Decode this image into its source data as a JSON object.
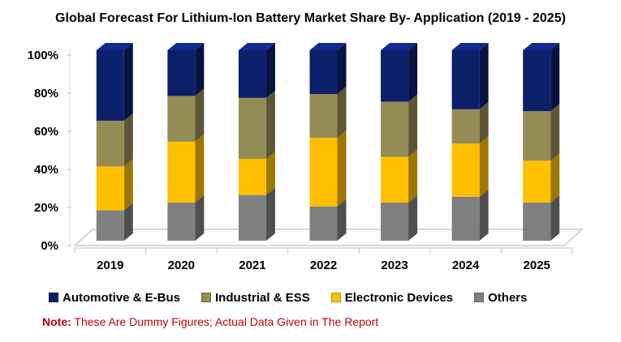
{
  "chart_data": {
    "type": "bar",
    "stacked": "percent",
    "title": "Global Forecast For Lithium-Ion Battery Market Share By- Application (2019 - 2025)",
    "categories": [
      "2019",
      "2020",
      "2021",
      "2022",
      "2023",
      "2024",
      "2025"
    ],
    "series": [
      {
        "name": "Others",
        "color": "#808080",
        "values": [
          16,
          20,
          24,
          18,
          20,
          23,
          20
        ]
      },
      {
        "name": "Electronic Devices",
        "color": "#FFC000",
        "values": [
          23,
          32,
          19,
          36,
          24,
          28,
          22
        ]
      },
      {
        "name": "Industrial & ESS",
        "color": "#958B55",
        "values": [
          24,
          24,
          32,
          23,
          29,
          18,
          26
        ]
      },
      {
        "name": "Automotive & E-Bus",
        "color": "#0C1F6B",
        "values": [
          37,
          24,
          25,
          23,
          27,
          31,
          32
        ]
      }
    ],
    "legend_order": [
      "Automotive & E-Bus",
      "Industrial & ESS",
      "Electronic Devices",
      "Others"
    ],
    "ylim": [
      0,
      100
    ],
    "yticks": [
      "0%",
      "20%",
      "40%",
      "60%",
      "80%",
      "100%"
    ],
    "xlabel": "",
    "ylabel": "",
    "legend_position": "bottom"
  },
  "note": {
    "label": "Note:",
    "text": "These Are Dummy Figures; Actual Data Given in The Report"
  }
}
